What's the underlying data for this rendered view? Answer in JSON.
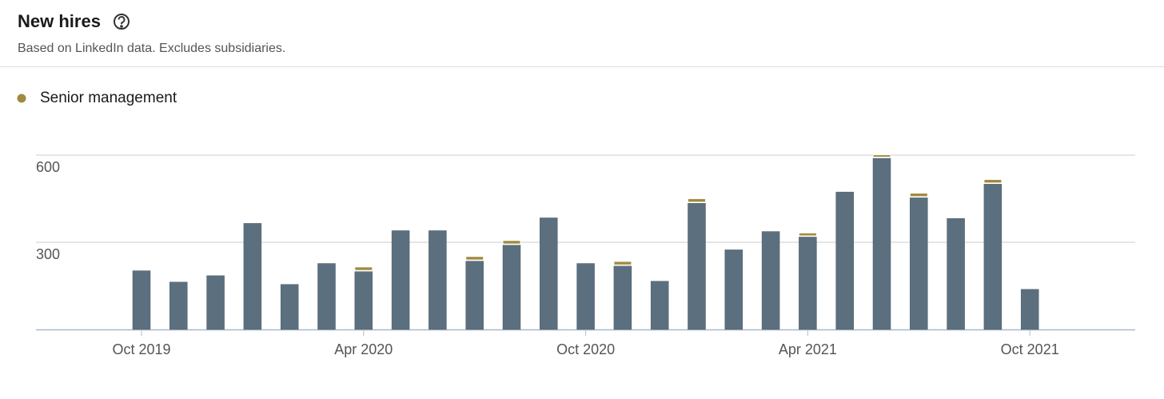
{
  "title": "New hires",
  "subtitle": "Based on LinkedIn data. Excludes subsidiaries.",
  "chart_data": {
    "type": "stacked_bar",
    "categories": [
      "Oct 2019",
      null,
      null,
      null,
      null,
      null,
      "Apr 2020",
      null,
      null,
      null,
      null,
      null,
      "Oct 2020",
      null,
      null,
      null,
      null,
      null,
      "Apr 2021",
      null,
      null,
      null,
      null,
      null,
      "Oct 2021"
    ],
    "series": [
      {
        "color": "#5c6f7e",
        "values": [
          202,
          163,
          185,
          365,
          155,
          227,
          199,
          340,
          340,
          235,
          290,
          384,
          227,
          218,
          166,
          434,
          274,
          337,
          318,
          473,
          589,
          453,
          382,
          500,
          138
        ]
      },
      {
        "name": "Senior management",
        "color": "#a08a3e",
        "values": [
          null,
          null,
          null,
          null,
          null,
          null,
          12,
          null,
          null,
          12,
          12,
          null,
          null,
          12,
          null,
          12,
          null,
          null,
          10,
          null,
          8,
          12,
          null,
          12,
          null
        ]
      }
    ],
    "ylim": [
      0,
      600
    ],
    "yticks": [
      300,
      600
    ],
    "grid": true,
    "legend": "top-left"
  }
}
